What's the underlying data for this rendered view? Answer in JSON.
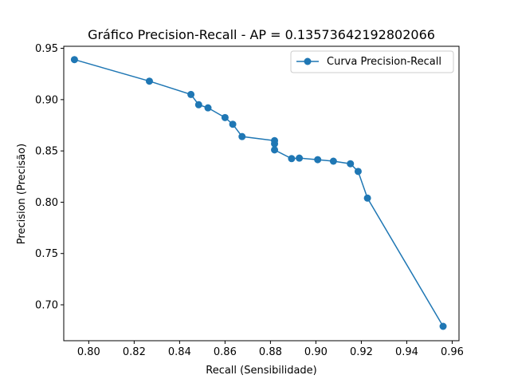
{
  "chart_data": {
    "type": "line",
    "title": "Gráfico Precision-Recall - AP = 0.13573642192802066",
    "xlabel": "Recall (Sensibilidade)",
    "ylabel": "Precision (Precisão)",
    "xlim": [
      0.789,
      0.963
    ],
    "ylim": [
      0.665,
      0.952
    ],
    "x_ticks": [
      "0.80",
      "0.82",
      "0.84",
      "0.86",
      "0.88",
      "0.90",
      "0.92",
      "0.94",
      "0.96"
    ],
    "y_ticks": [
      "0.70",
      "0.75",
      "0.80",
      "0.85",
      "0.90",
      "0.95"
    ],
    "grid": false,
    "legend_position": "top-right",
    "series_color": "#1f77b4",
    "series": [
      {
        "name": "Curva Precision-Recall",
        "x": [
          0.7937,
          0.8267,
          0.845,
          0.8484,
          0.8525,
          0.86,
          0.8634,
          0.8675,
          0.8818,
          0.8818,
          0.8818,
          0.8893,
          0.8927,
          0.9008,
          0.9077,
          0.9152,
          0.9186,
          0.9227,
          0.956
        ],
        "y": [
          0.939,
          0.918,
          0.905,
          0.895,
          0.892,
          0.8825,
          0.876,
          0.864,
          0.86,
          0.857,
          0.851,
          0.8425,
          0.843,
          0.8415,
          0.84,
          0.8375,
          0.83,
          0.804,
          0.679
        ]
      }
    ]
  }
}
